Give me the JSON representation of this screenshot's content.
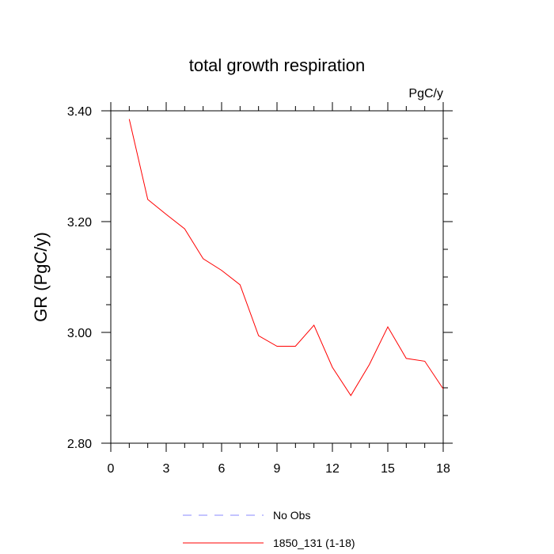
{
  "chart_data": {
    "type": "line",
    "title": "total growth respiration",
    "units_label": "PgC/y",
    "ylabel": "GR  (PgC/y)",
    "xlabel": "",
    "xlim": [
      0,
      18
    ],
    "ylim": [
      2.8,
      3.4
    ],
    "xticks": [
      0,
      3,
      6,
      9,
      12,
      15,
      18
    ],
    "xtick_labels": [
      "0",
      "3",
      "6",
      "9",
      "12",
      "15",
      "18"
    ],
    "yticks": [
      2.8,
      3.0,
      3.2,
      3.4
    ],
    "ytick_labels": [
      "2.80",
      "3.00",
      "3.20",
      "3.40"
    ],
    "grid": false,
    "legend_position": "bottom",
    "series": [
      {
        "name": "1850_131 (1-18)",
        "color": "#ff0000",
        "dash": "solid",
        "x": [
          1,
          2,
          3,
          4,
          5,
          6,
          7,
          8,
          9,
          10,
          11,
          12,
          13,
          14,
          15,
          16,
          17,
          18
        ],
        "y": [
          3.385,
          3.24,
          3.213,
          3.187,
          3.133,
          3.112,
          3.086,
          2.994,
          2.975,
          2.975,
          3.013,
          2.937,
          2.886,
          2.942,
          3.01,
          2.953,
          2.948,
          2.898
        ]
      }
    ],
    "legend": [
      {
        "label": "No Obs",
        "color": "#8888ff",
        "dash": "dashed"
      },
      {
        "label": "1850_131 (1-18)",
        "color": "#ff0000",
        "dash": "solid"
      }
    ]
  }
}
